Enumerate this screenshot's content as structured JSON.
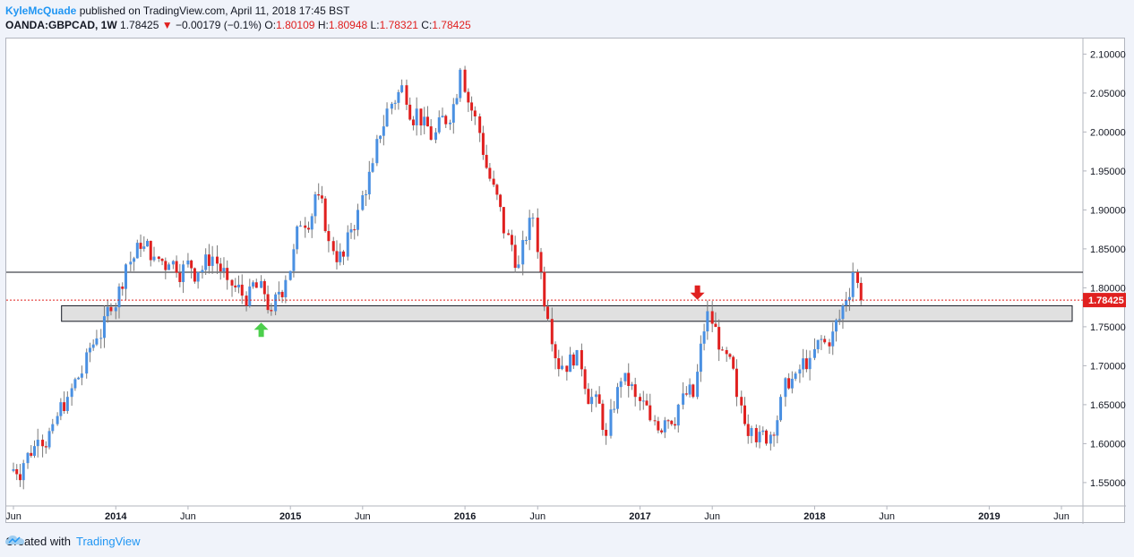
{
  "header": {
    "author": "KyleMcQuade",
    "published": "published on TradingView.com, April 11, 2018 17:45 BST",
    "symbol": "OANDA:GBPCAD, 1W",
    "price": "1.78425",
    "change_arrow": "▼",
    "change": "−0.00179 (−0.1%)",
    "o_label": "O:",
    "o_value": "1.80109",
    "h_label": "H:",
    "h_value": "1.80948",
    "l_label": "L:",
    "l_value": "1.78321",
    "c_label": "C:",
    "c_value": "1.78425"
  },
  "footer": {
    "created_with": "Created with",
    "brand": "TradingView",
    "logo_icon": "tradingview-cloud-icon"
  },
  "colors": {
    "up": "#4a90e2",
    "down": "#e0201f",
    "zone": "#e0e0e0",
    "arrow_up": "#4ccf4c",
    "arrow_down": "#e0201f",
    "price_label": "#e0201f"
  },
  "chart_data": {
    "type": "candlestick",
    "ylim": [
      1.52,
      2.12
    ],
    "y_ticks": [
      "2.10000",
      "2.05000",
      "2.00000",
      "1.95000",
      "1.90000",
      "1.85000",
      "1.80000",
      "1.75000",
      "1.70000",
      "1.65000",
      "1.60000",
      "1.55000"
    ],
    "x_ticks": [
      {
        "label": "Jun",
        "bold": false,
        "date": "2013-06"
      },
      {
        "label": "2014",
        "bold": true,
        "date": "2014-01"
      },
      {
        "label": "Jun",
        "bold": false,
        "date": "2014-06"
      },
      {
        "label": "2015",
        "bold": true,
        "date": "2015-01"
      },
      {
        "label": "Jun",
        "bold": false,
        "date": "2015-06"
      },
      {
        "label": "2016",
        "bold": true,
        "date": "2016-01"
      },
      {
        "label": "Jun",
        "bold": false,
        "date": "2016-06"
      },
      {
        "label": "2017",
        "bold": true,
        "date": "2017-01"
      },
      {
        "label": "Jun",
        "bold": false,
        "date": "2017-06"
      },
      {
        "label": "2018",
        "bold": true,
        "date": "2018-01"
      },
      {
        "label": "Jun",
        "bold": false,
        "date": "2018-06"
      },
      {
        "label": "2019",
        "bold": true,
        "date": "2019-01"
      },
      {
        "label": "Jun",
        "bold": false,
        "date": "2019-06"
      }
    ],
    "last_price": "1.78425",
    "resistance_line": 1.82,
    "support_zone": [
      1.757,
      1.777
    ],
    "annotations": [
      {
        "type": "arrow-up",
        "date": "2014-11",
        "price": 1.745
      },
      {
        "type": "arrow-down",
        "date": "2017-05",
        "price": 1.795
      }
    ],
    "monthly_closes": [
      {
        "date": "2013-06",
        "close": 1.575
      },
      {
        "date": "2013-07",
        "close": 1.605
      },
      {
        "date": "2013-08",
        "close": 1.625
      },
      {
        "date": "2013-09",
        "close": 1.66
      },
      {
        "date": "2013-10",
        "close": 1.69
      },
      {
        "date": "2013-11",
        "close": 1.735
      },
      {
        "date": "2013-12",
        "close": 1.77
      },
      {
        "date": "2014-01",
        "close": 1.83
      },
      {
        "date": "2014-02",
        "close": 1.85
      },
      {
        "date": "2014-03",
        "close": 1.84
      },
      {
        "date": "2014-04",
        "close": 1.83
      },
      {
        "date": "2014-05",
        "close": 1.83
      },
      {
        "date": "2014-06",
        "close": 1.82
      },
      {
        "date": "2014-07",
        "close": 1.84
      },
      {
        "date": "2014-08",
        "close": 1.81
      },
      {
        "date": "2014-09",
        "close": 1.79
      },
      {
        "date": "2014-10",
        "close": 1.8
      },
      {
        "date": "2014-11",
        "close": 1.77
      },
      {
        "date": "2014-12",
        "close": 1.81
      },
      {
        "date": "2015-01",
        "close": 1.88
      },
      {
        "date": "2015-02",
        "close": 1.92
      },
      {
        "date": "2015-03",
        "close": 1.86
      },
      {
        "date": "2015-04",
        "close": 1.84
      },
      {
        "date": "2015-05",
        "close": 1.9
      },
      {
        "date": "2015-06",
        "close": 1.96
      },
      {
        "date": "2015-07",
        "close": 2.03
      },
      {
        "date": "2015-08",
        "close": 2.06
      },
      {
        "date": "2015-09",
        "close": 2.03
      },
      {
        "date": "2015-10",
        "close": 1.99
      },
      {
        "date": "2015-11",
        "close": 2.01
      },
      {
        "date": "2015-12",
        "close": 2.08
      },
      {
        "date": "2016-01",
        "close": 2.02
      },
      {
        "date": "2016-02",
        "close": 1.94
      },
      {
        "date": "2016-03",
        "close": 1.87
      },
      {
        "date": "2016-04",
        "close": 1.83
      },
      {
        "date": "2016-05",
        "close": 1.89
      },
      {
        "date": "2016-06",
        "close": 1.76
      },
      {
        "date": "2016-07",
        "close": 1.7
      },
      {
        "date": "2016-08",
        "close": 1.72
      },
      {
        "date": "2016-09",
        "close": 1.66
      },
      {
        "date": "2016-10",
        "close": 1.61
      },
      {
        "date": "2016-11",
        "close": 1.68
      },
      {
        "date": "2016-12",
        "close": 1.66
      },
      {
        "date": "2017-01",
        "close": 1.63
      },
      {
        "date": "2017-02",
        "close": 1.63
      },
      {
        "date": "2017-03",
        "close": 1.65
      },
      {
        "date": "2017-04",
        "close": 1.66
      },
      {
        "date": "2017-05",
        "close": 1.77
      },
      {
        "date": "2017-06",
        "close": 1.72
      },
      {
        "date": "2017-07",
        "close": 1.66
      },
      {
        "date": "2017-08",
        "close": 1.62
      },
      {
        "date": "2017-09",
        "close": 1.6
      },
      {
        "date": "2017-10",
        "close": 1.66
      },
      {
        "date": "2017-11",
        "close": 1.69
      },
      {
        "date": "2017-12",
        "close": 1.71
      },
      {
        "date": "2018-01",
        "close": 1.73
      },
      {
        "date": "2018-02",
        "close": 1.76
      },
      {
        "date": "2018-03",
        "close": 1.82
      },
      {
        "date": "2018-04",
        "close": 1.784
      }
    ]
  }
}
